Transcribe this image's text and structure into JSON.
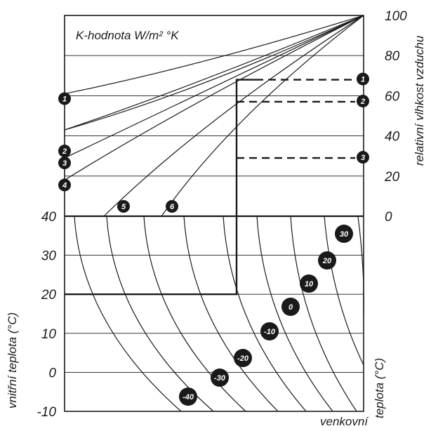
{
  "chart_data": {
    "type": "line",
    "title": "K-hodnota W/m² °K",
    "upper_panel": {
      "ylabel": "relativní vlhkost vzduchu",
      "ylim": [
        0,
        100
      ],
      "yticks": [
        "100",
        "80",
        "60",
        "40",
        "20",
        "0"
      ],
      "k_curves": [
        {
          "name": "1",
          "left_value": 61
        },
        {
          "name": "2",
          "left_value": 43
        },
        {
          "name": "3",
          "left_value": 29
        },
        {
          "name": "4",
          "left_value": 18
        },
        {
          "name": "5",
          "left_value": 0
        },
        {
          "name": "6",
          "left_value": 0
        }
      ],
      "dashed_levels": [
        {
          "name": "1",
          "value": 68
        },
        {
          "name": "2",
          "value": 57
        },
        {
          "name": "3",
          "value": 29
        }
      ]
    },
    "lower_panel": {
      "ylabel": "vnitřní teplota (°C)",
      "ylim": [
        -10,
        40
      ],
      "yticks": [
        "40",
        "30",
        "20",
        "10",
        "0",
        "-10"
      ],
      "series_label": "venkovní teplota (°C)",
      "outdoor_temperature_curves": [
        "30",
        "20",
        "10",
        "0",
        "-10",
        "-20",
        "-30",
        "-40"
      ]
    },
    "example": {
      "indoor_temperature": 20,
      "humidity_level": 68
    },
    "grid": true
  },
  "labels": {
    "k_value": "K-hodnota W/m² °K",
    "humidity_axis": "relativní vlhkost vzduchu",
    "indoor_axis": "vnitřní teplota (°C)",
    "outdoor_axis_word": "venkovní",
    "outdoor_axis_unit": "teplota (°C)"
  }
}
